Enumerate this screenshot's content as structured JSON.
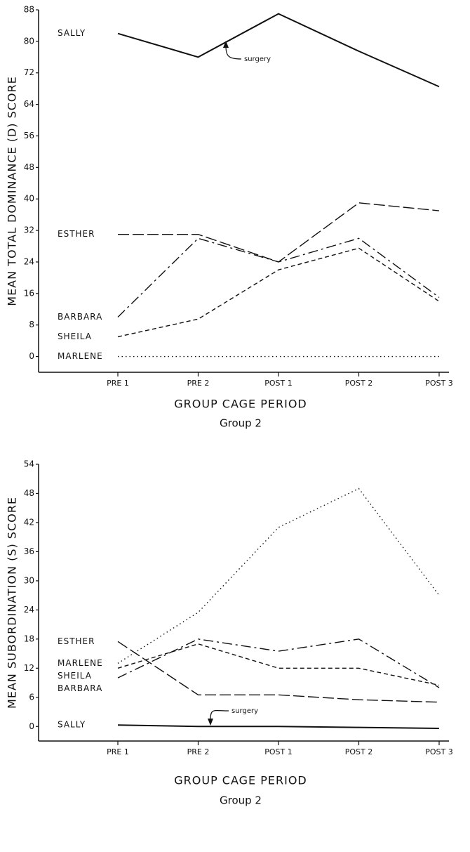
{
  "chart_data": [
    {
      "type": "line",
      "ylabel": "MEAN TOTAL DOMINANCE (D) SCORE",
      "xlabel": "GROUP CAGE PERIOD",
      "subtitle": "Group 2",
      "annotation": "surgery",
      "categories": [
        "PRE 1",
        "PRE 2",
        "POST 1",
        "POST 2",
        "POST 3"
      ],
      "series": [
        {
          "name": "SALLY",
          "color": "#111111",
          "dash": "solid",
          "values": [
            82,
            76,
            87,
            77.5,
            68.5
          ]
        },
        {
          "name": "ESTHER",
          "color": "#111111",
          "dash": "long-dash",
          "values": [
            31,
            31,
            24,
            39,
            37
          ]
        },
        {
          "name": "BARBARA",
          "color": "#111111",
          "dash": "dash-dot",
          "values": [
            10,
            30,
            24,
            30,
            15
          ]
        },
        {
          "name": "SHEILA",
          "color": "#111111",
          "dash": "dash",
          "values": [
            5,
            9.5,
            22,
            27.5,
            14
          ]
        },
        {
          "name": "MARLENE",
          "color": "#111111",
          "dash": "dot",
          "values": [
            0,
            0,
            0,
            0,
            0
          ]
        }
      ],
      "ylim": [
        -4,
        88
      ],
      "yticks": [
        0,
        8,
        16,
        24,
        32,
        40,
        48,
        56,
        64,
        72,
        80,
        88
      ]
    },
    {
      "type": "line",
      "ylabel": "MEAN SUBORDINATION (S) SCORE",
      "xlabel": "GROUP CAGE PERIOD",
      "subtitle": "Group 2",
      "annotation": "surgery",
      "categories": [
        "PRE 1",
        "PRE 2",
        "POST 1",
        "POST 2",
        "POST 3"
      ],
      "series": [
        {
          "name": "ESTHER",
          "color": "#111111",
          "dash": "long-dash",
          "values": [
            17.5,
            6.5,
            6.5,
            5.5,
            5
          ]
        },
        {
          "name": "MARLENE",
          "color": "#111111",
          "dash": "dot",
          "values": [
            13,
            23.5,
            41,
            49,
            27
          ]
        },
        {
          "name": "SHEILA",
          "color": "#111111",
          "dash": "dash",
          "values": [
            12,
            17,
            12,
            12,
            8.5
          ]
        },
        {
          "name": "BARBARA",
          "color": "#111111",
          "dash": "dash-dot",
          "values": [
            10,
            18,
            15.5,
            18,
            8
          ]
        },
        {
          "name": "SALLY",
          "color": "#111111",
          "dash": "solid",
          "values": [
            0.3,
            0,
            0,
            -0.2,
            -0.4
          ]
        }
      ],
      "ylim": [
        -3,
        54
      ],
      "yticks": [
        0,
        6,
        12,
        18,
        24,
        30,
        36,
        42,
        48,
        54
      ]
    }
  ]
}
